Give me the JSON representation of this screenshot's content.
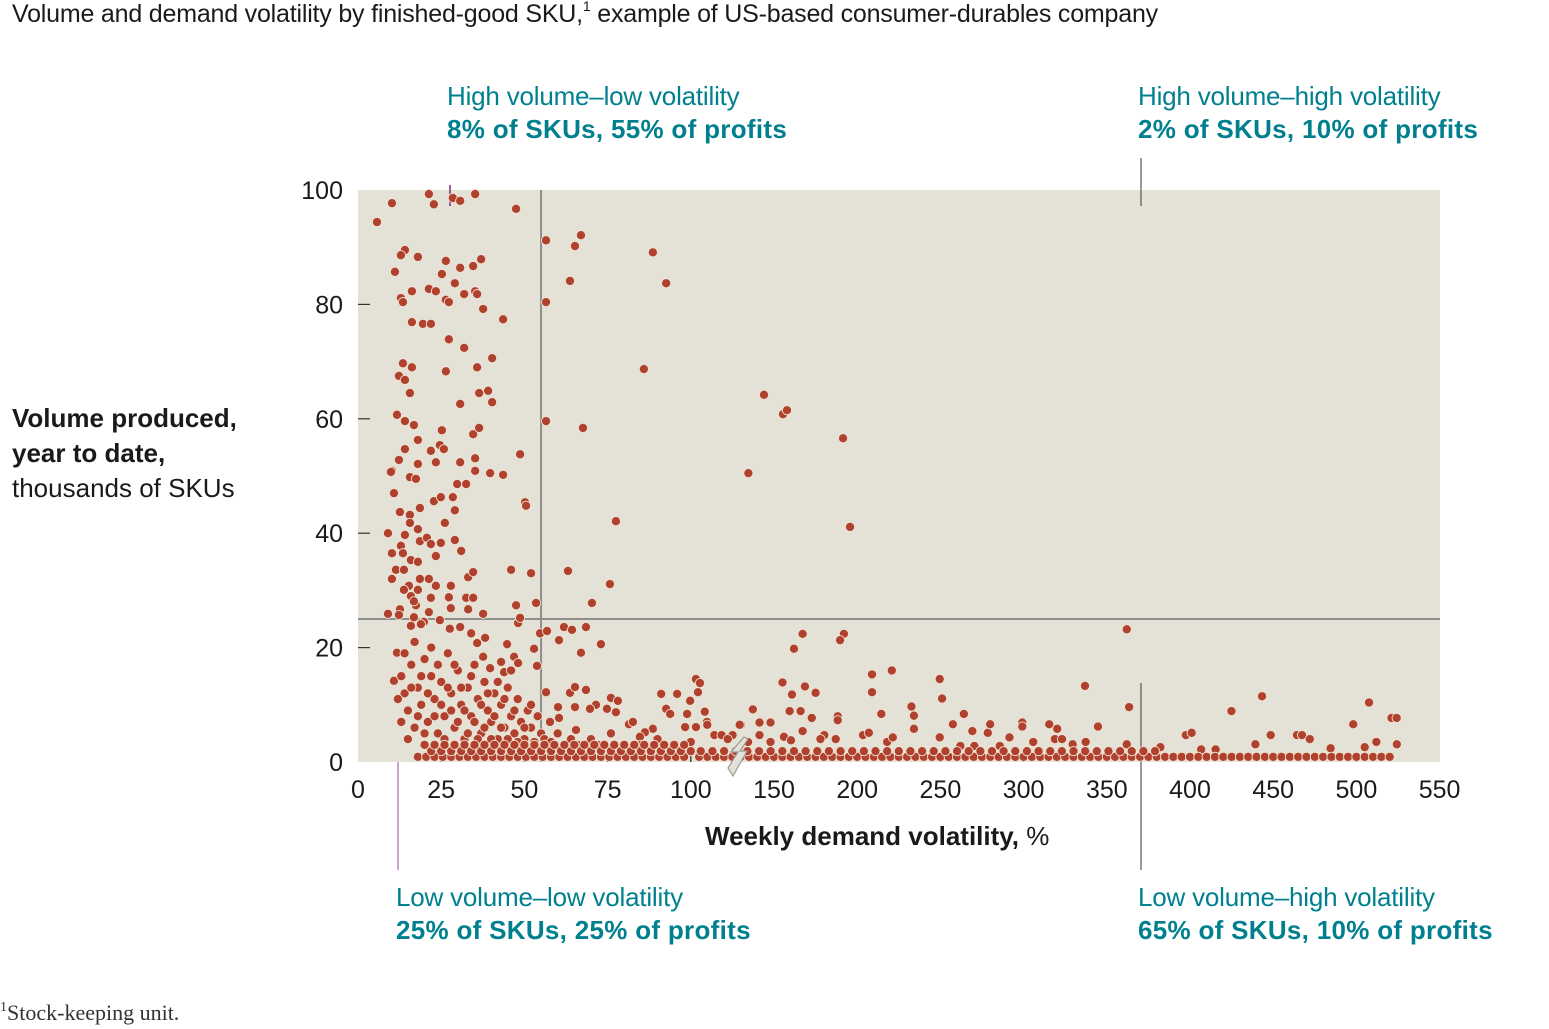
{
  "title": {
    "text": "Volume and demand volatility by finished-good SKU,",
    "footnote_mark": "1",
    "rest": " example of US-based consumer-durables company"
  },
  "quadrants": {
    "high_low": {
      "label": "High volume–low volatility",
      "stat": "8% of SKUs, 55% of profits"
    },
    "high_high": {
      "label": "High volume–high volatility",
      "stat": "2% of SKUs, 10% of profits"
    },
    "low_low": {
      "label": "Low volume–low volatility",
      "stat": "25% of SKUs, 25% of profits"
    },
    "low_high": {
      "label": "Low volume–high volatility",
      "stat": "65% of SKUs, 10% of profits"
    }
  },
  "footnote": {
    "mark": "1",
    "text": "Stock-keeping unit."
  },
  "colors": {
    "plot_bg": "#e4e1d6",
    "dot": "#b0412f",
    "dot_edge": "#f0e2d0",
    "accent": "#00808f",
    "threshold": "#8e8e8e",
    "leader": "#7a2a7a"
  },
  "chart_data": {
    "type": "scatter",
    "title": "Volume and demand volatility by finished-good SKU",
    "xlabel": {
      "bold": "Weekly demand volatility,",
      "unit": " %"
    },
    "ylabel": {
      "line1": "Volume produced,",
      "line2": "year to date,",
      "line3": "thousands of SKUs"
    },
    "xlim": [
      0,
      550
    ],
    "x_axis_break": [
      100,
      150
    ],
    "ylim": [
      0,
      100
    ],
    "xticks": [
      "0",
      "25",
      "50",
      "75",
      "100",
      "150",
      "200",
      "250",
      "300",
      "350",
      "400",
      "450",
      "500",
      "550"
    ],
    "xtick_values": [
      0,
      25,
      50,
      75,
      100,
      150,
      200,
      250,
      300,
      350,
      400,
      450,
      500,
      550
    ],
    "yticks": [
      "0",
      "20",
      "40",
      "60",
      "80",
      "100"
    ],
    "ytick_values": [
      0,
      20,
      40,
      60,
      80,
      100
    ],
    "thresholds": {
      "volatility_pct": 55,
      "volume_thousands": 25
    },
    "grid": false,
    "points": [
      [
        10.2,
        97.7
      ],
      [
        21.3,
        99.3
      ],
      [
        22.8,
        97.5
      ],
      [
        28.5,
        98.6
      ],
      [
        30.7,
        98.1
      ],
      [
        35.2,
        99.3
      ],
      [
        47.5,
        96.7
      ],
      [
        5.7,
        94.4
      ],
      [
        56.5,
        91.2
      ],
      [
        67.0,
        92.1
      ],
      [
        65.2,
        90.2
      ],
      [
        88.6,
        89.1
      ],
      [
        14.1,
        89.5
      ],
      [
        12.9,
        88.6
      ],
      [
        18.0,
        88.3
      ],
      [
        26.4,
        87.6
      ],
      [
        30.7,
        86.4
      ],
      [
        34.6,
        86.7
      ],
      [
        37.0,
        87.9
      ],
      [
        11.1,
        85.7
      ],
      [
        25.2,
        85.3
      ],
      [
        29.1,
        83.7
      ],
      [
        63.7,
        84.1
      ],
      [
        92.6,
        83.7
      ],
      [
        16.2,
        82.3
      ],
      [
        21.3,
        82.7
      ],
      [
        23.4,
        82.3
      ],
      [
        31.9,
        81.8
      ],
      [
        35.2,
        82.3
      ],
      [
        35.8,
        81.8
      ],
      [
        12.9,
        81.1
      ],
      [
        13.5,
        80.4
      ],
      [
        26.4,
        80.8
      ],
      [
        27.3,
        80.4
      ],
      [
        56.5,
        80.4
      ],
      [
        37.6,
        79.2
      ],
      [
        16.2,
        76.9
      ],
      [
        19.5,
        76.6
      ],
      [
        21.9,
        76.6
      ],
      [
        43.6,
        77.4
      ],
      [
        27.3,
        73.9
      ],
      [
        31.9,
        72.4
      ],
      [
        13.5,
        69.7
      ],
      [
        16.2,
        69.0
      ],
      [
        12.3,
        67.5
      ],
      [
        14.1,
        66.8
      ],
      [
        26.4,
        68.3
      ],
      [
        35.8,
        69.0
      ],
      [
        40.3,
        70.6
      ],
      [
        85.9,
        68.7
      ],
      [
        15.6,
        64.5
      ],
      [
        30.7,
        62.6
      ],
      [
        36.4,
        64.5
      ],
      [
        39.1,
        64.9
      ],
      [
        40.3,
        62.9
      ],
      [
        11.7,
        60.7
      ],
      [
        14.1,
        59.6
      ],
      [
        16.8,
        58.9
      ],
      [
        25.2,
        58.0
      ],
      [
        34.6,
        57.3
      ],
      [
        36.4,
        58.4
      ],
      [
        56.5,
        59.6
      ],
      [
        67.6,
        58.4
      ],
      [
        18.0,
        56.3
      ],
      [
        24.6,
        55.4
      ],
      [
        25.8,
        54.7
      ],
      [
        21.9,
        54.4
      ],
      [
        14.1,
        54.7
      ],
      [
        12.3,
        52.8
      ],
      [
        18.0,
        52.1
      ],
      [
        23.4,
        52.4
      ],
      [
        30.7,
        52.4
      ],
      [
        35.2,
        53.1
      ],
      [
        48.7,
        53.8
      ],
      [
        10.2,
        50.9
      ],
      [
        35.2,
        50.9
      ],
      [
        39.7,
        50.5
      ],
      [
        43.6,
        50.2
      ],
      [
        134.6,
        50.5
      ],
      [
        144,
        64.2
      ],
      [
        155.4,
        60.8
      ],
      [
        157.8,
        61.5
      ],
      [
        191.5,
        56.6
      ],
      [
        195.7,
        41.1
      ],
      [
        9.9,
        50.7
      ],
      [
        15.6,
        49.8
      ],
      [
        17.4,
        49.5
      ],
      [
        29.8,
        48.6
      ],
      [
        32.5,
        48.6
      ],
      [
        10.8,
        47.0
      ],
      [
        22.8,
        45.6
      ],
      [
        24.9,
        46.3
      ],
      [
        28.5,
        46.3
      ],
      [
        50.2,
        45.4
      ],
      [
        50.5,
        44.8
      ],
      [
        18.6,
        44.4
      ],
      [
        29.1,
        44.0
      ],
      [
        12.6,
        43.7
      ],
      [
        15.6,
        43.2
      ],
      [
        26.1,
        41.8
      ],
      [
        15.6,
        41.8
      ],
      [
        77.5,
        42.1
      ],
      [
        9.0,
        40.0
      ],
      [
        18.0,
        40.7
      ],
      [
        14.1,
        39.7
      ],
      [
        18.6,
        38.6
      ],
      [
        20.7,
        39.2
      ],
      [
        29.1,
        38.8
      ],
      [
        24.9,
        38.3
      ],
      [
        21.9,
        38.1
      ],
      [
        12.9,
        37.8
      ],
      [
        31.0,
        36.9
      ],
      [
        10.2,
        36.5
      ],
      [
        13.5,
        36.5
      ],
      [
        23.4,
        36.0
      ],
      [
        15.9,
        35.3
      ],
      [
        18.0,
        35.0
      ],
      [
        11.4,
        33.6
      ],
      [
        13.8,
        33.6
      ],
      [
        46.0,
        33.6
      ],
      [
        52.0,
        33.0
      ],
      [
        63.1,
        33.4
      ],
      [
        10.2,
        32.0
      ],
      [
        18.6,
        32.0
      ],
      [
        21.3,
        32.0
      ],
      [
        33.1,
        32.3
      ],
      [
        34.6,
        33.2
      ],
      [
        75.7,
        31.1
      ],
      [
        15.3,
        30.8
      ],
      [
        23.4,
        30.8
      ],
      [
        27.9,
        30.8
      ],
      [
        13.8,
        30.1
      ],
      [
        18.0,
        30.1
      ],
      [
        15.9,
        29.0
      ],
      [
        21.9,
        28.7
      ],
      [
        27.3,
        28.8
      ],
      [
        32.5,
        28.7
      ],
      [
        34.6,
        28.7
      ],
      [
        17.4,
        27.4
      ],
      [
        16.8,
        28.1
      ],
      [
        12.6,
        26.7
      ],
      [
        21.3,
        26.2
      ],
      [
        27.9,
        26.9
      ],
      [
        33.1,
        26.7
      ],
      [
        47.5,
        27.4
      ],
      [
        53.5,
        27.8
      ],
      [
        70.3,
        27.8
      ],
      [
        9.0,
        25.9
      ],
      [
        12.3,
        25.7
      ],
      [
        16.8,
        25.3
      ],
      [
        37.6,
        25.9
      ],
      [
        48.1,
        24.3
      ],
      [
        48.7,
        25.2
      ],
      [
        24.6,
        24.8
      ],
      [
        19.8,
        24.5
      ],
      [
        15.9,
        23.8
      ],
      [
        18.9,
        24.1
      ],
      [
        30.7,
        23.6
      ],
      [
        27.6,
        23.3
      ],
      [
        61.9,
        23.6
      ],
      [
        64.3,
        23.1
      ],
      [
        68.5,
        23.6
      ],
      [
        54.7,
        22.5
      ],
      [
        56.8,
        22.9
      ],
      [
        60.4,
        21.3
      ],
      [
        73.0,
        20.6
      ],
      [
        44.8,
        20.6
      ],
      [
        52.9,
        19.8
      ],
      [
        67.0,
        19.1
      ],
      [
        34.0,
        22.5
      ],
      [
        35.8,
        20.8
      ],
      [
        38.2,
        21.7
      ],
      [
        37.6,
        18.4
      ],
      [
        39.7,
        16.4
      ],
      [
        43.0,
        17.5
      ],
      [
        43.9,
        15.7
      ],
      [
        46.9,
        18.4
      ],
      [
        48.1,
        17.3
      ],
      [
        53.8,
        16.8
      ],
      [
        11.7,
        19.1
      ],
      [
        10.8,
        14.2
      ],
      [
        56.5,
        12.2
      ],
      [
        63.7,
        12.1
      ],
      [
        65.2,
        13.1
      ],
      [
        68.5,
        12.6
      ],
      [
        91.1,
        11.9
      ],
      [
        95.9,
        11.9
      ],
      [
        103.1,
        14.5
      ],
      [
        105.5,
        13.8
      ],
      [
        104.3,
        12.2
      ],
      [
        99.8,
        10.7
      ],
      [
        137.4,
        9.3
      ],
      [
        76.0,
        11.2
      ],
      [
        78.1,
        10.7
      ],
      [
        71.5,
        10.0
      ],
      [
        69.7,
        9.3
      ],
      [
        74.8,
        9.3
      ],
      [
        77.5,
        8.7
      ],
      [
        92.6,
        9.3
      ],
      [
        93.8,
        8.4
      ],
      [
        98.9,
        8.4
      ],
      [
        108.5,
        8.9
      ],
      [
        60.1,
        9.6
      ],
      [
        65.2,
        9.6
      ],
      [
        60.4,
        7.7
      ],
      [
        57.7,
        7.0
      ],
      [
        81.4,
        6.6
      ],
      [
        82.6,
        7.0
      ],
      [
        130.2,
        6.5
      ],
      [
        109.7,
        7.0
      ],
      [
        103.1,
        6.1
      ],
      [
        98.3,
        6.1
      ],
      [
        88.6,
        5.8
      ],
      [
        86.2,
        5.2
      ],
      [
        84.7,
        4.4
      ],
      [
        65.5,
        5.6
      ],
      [
        167.2,
        22.4
      ],
      [
        162,
        19.8
      ],
      [
        192,
        22.4
      ],
      [
        189.7,
        21.3
      ],
      [
        362,
        23.2
      ],
      [
        155.1,
        13.9
      ],
      [
        160.8,
        11.8
      ],
      [
        168.6,
        13.2
      ],
      [
        175,
        12.1
      ],
      [
        208.9,
        15.3
      ],
      [
        208.9,
        12.2
      ],
      [
        220.8,
        16.0
      ],
      [
        249.6,
        14.5
      ],
      [
        251,
        11.1
      ],
      [
        232.6,
        9.7
      ],
      [
        234.1,
        8.1
      ],
      [
        234.1,
        5.8
      ],
      [
        336.9,
        13.3
      ],
      [
        363.4,
        9.6
      ],
      [
        344.7,
        6.2
      ],
      [
        337.3,
        3.5
      ],
      [
        362,
        3.1
      ],
      [
        424.9,
        8.9
      ],
      [
        443.3,
        11.5
      ],
      [
        507.6,
        10.4
      ],
      [
        521.1,
        7.7
      ],
      [
        524.2,
        7.7
      ],
      [
        498.1,
        6.6
      ],
      [
        397.5,
        4.7
      ],
      [
        401,
        5.1
      ],
      [
        448.5,
        4.7
      ],
      [
        464.3,
        4.7
      ],
      [
        467.3,
        4.7
      ],
      [
        472,
        4.0
      ],
      [
        512,
        3.5
      ],
      [
        524.3,
        3.1
      ],
      [
        439.3,
        3.1
      ],
      [
        484.5,
        2.4
      ],
      [
        505,
        2.6
      ],
      [
        137.3,
        9.2
      ],
      [
        141.3,
        6.9
      ],
      [
        141.3,
        4.7
      ],
      [
        147.9,
        6.9
      ],
      [
        147.9,
        3.5
      ],
      [
        129.4,
        6.5
      ],
      [
        159.4,
        8.9
      ],
      [
        166,
        8.9
      ],
      [
        167.2,
        5.4
      ],
      [
        172.7,
        7.7
      ],
      [
        180.2,
        4.7
      ],
      [
        177.9,
        4.0
      ],
      [
        188.3,
        8.0
      ],
      [
        188.3,
        7.3
      ],
      [
        187.1,
        4.0
      ],
      [
        203.5,
        4.7
      ],
      [
        207,
        5.1
      ],
      [
        214.5,
        8.4
      ],
      [
        218,
        3.5
      ],
      [
        221.4,
        4.3
      ],
      [
        249.6,
        4.3
      ],
      [
        257.5,
        6.6
      ],
      [
        264.1,
        8.4
      ],
      [
        262,
        2.8
      ],
      [
        269.2,
        5.4
      ],
      [
        270.4,
        2.8
      ],
      [
        278.5,
        5.1
      ],
      [
        279.9,
        6.6
      ],
      [
        285.7,
        2.8
      ],
      [
        291.5,
        4.3
      ],
      [
        299.2,
        6.9
      ],
      [
        299.2,
        6.2
      ],
      [
        305.8,
        3.5
      ],
      [
        315.4,
        6.6
      ],
      [
        320.2,
        5.8
      ],
      [
        318.8,
        4.0
      ],
      [
        323.1,
        4.0
      ],
      [
        329.5,
        3.1
      ],
      [
        382.2,
        2.6
      ],
      [
        406.7,
        2.2
      ],
      [
        415.4,
        2.2
      ],
      [
        108.4,
        8.8
      ],
      [
        109.9,
        6.5
      ],
      [
        114.2,
        4.7
      ],
      [
        118.5,
        4.7
      ],
      [
        125.1,
        4.7
      ],
      [
        122.2,
        4.0
      ],
      [
        134.4,
        3.5
      ],
      [
        156,
        4.4
      ],
      [
        160.2,
        3.8
      ],
      [
        13,
        15
      ],
      [
        14,
        12
      ],
      [
        15,
        9
      ],
      [
        16,
        17
      ],
      [
        17,
        6
      ],
      [
        18,
        13
      ],
      [
        19,
        10
      ],
      [
        20,
        18
      ],
      [
        21,
        7
      ],
      [
        22,
        15
      ],
      [
        23,
        11
      ],
      [
        24,
        5
      ],
      [
        25,
        14
      ],
      [
        26,
        8
      ],
      [
        27,
        19
      ],
      [
        28,
        12
      ],
      [
        29,
        6
      ],
      [
        30,
        16
      ],
      [
        31,
        10
      ],
      [
        32,
        4
      ],
      [
        33,
        13
      ],
      [
        34,
        8
      ],
      [
        35,
        17
      ],
      [
        36,
        11
      ],
      [
        37,
        5
      ],
      [
        38,
        14
      ],
      [
        39,
        9
      ],
      [
        40,
        7
      ],
      [
        41,
        12
      ],
      [
        42,
        4
      ],
      [
        43,
        10
      ],
      [
        44,
        6
      ],
      [
        45,
        13
      ],
      [
        46,
        8
      ],
      [
        47,
        5
      ],
      [
        48,
        11
      ],
      [
        49,
        7
      ],
      [
        50,
        4
      ],
      [
        51,
        9
      ],
      [
        52,
        6
      ],
      [
        53,
        3.5
      ],
      [
        54,
        8
      ],
      [
        55,
        5
      ],
      [
        12,
        11
      ],
      [
        13,
        7
      ],
      [
        14,
        19
      ],
      [
        15,
        4
      ],
      [
        16,
        13
      ],
      [
        17,
        21
      ],
      [
        18,
        8
      ],
      [
        19,
        15
      ],
      [
        20,
        5
      ],
      [
        21,
        12
      ],
      [
        22,
        20
      ],
      [
        23,
        8
      ],
      [
        24,
        17
      ],
      [
        25,
        10
      ],
      [
        26,
        4
      ],
      [
        27,
        13
      ],
      [
        28,
        9
      ],
      [
        29,
        17
      ],
      [
        30,
        7
      ],
      [
        31,
        13
      ],
      [
        32,
        9
      ],
      [
        33,
        5
      ],
      [
        34,
        15
      ],
      [
        35,
        7
      ],
      [
        36,
        4
      ],
      [
        37,
        10
      ],
      [
        38,
        6
      ],
      [
        39,
        12
      ],
      [
        40,
        4
      ],
      [
        41,
        8
      ],
      [
        42,
        14
      ],
      [
        43,
        6
      ],
      [
        44,
        11
      ],
      [
        45,
        4
      ],
      [
        46,
        16
      ],
      [
        47,
        9
      ],
      [
        48,
        3.5
      ],
      [
        50,
        6
      ],
      [
        52,
        10
      ],
      [
        56,
        4
      ],
      [
        58,
        3.5
      ],
      [
        60,
        5
      ],
      [
        62,
        3
      ],
      [
        64,
        4
      ],
      [
        66,
        3
      ],
      [
        70,
        4
      ],
      [
        72,
        3
      ],
      [
        76,
        5
      ],
      [
        80,
        3
      ],
      [
        85,
        3
      ],
      [
        90,
        4
      ],
      [
        95,
        3
      ],
      [
        100,
        3.5
      ]
    ],
    "rows": [
      {
        "y": 0.9,
        "x_start": 18,
        "x_end": 100,
        "x_step": 2.5
      },
      {
        "y": 0.9,
        "x_start": 105,
        "x_end": 523,
        "x_step": 5
      },
      {
        "y": 1.9,
        "x_start": 22,
        "x_end": 100,
        "x_step": 3
      },
      {
        "y": 1.9,
        "x_start": 106,
        "x_end": 380,
        "x_step": 7
      },
      {
        "y": 3.0,
        "x_start": 20,
        "x_end": 98,
        "x_step": 3
      }
    ]
  }
}
